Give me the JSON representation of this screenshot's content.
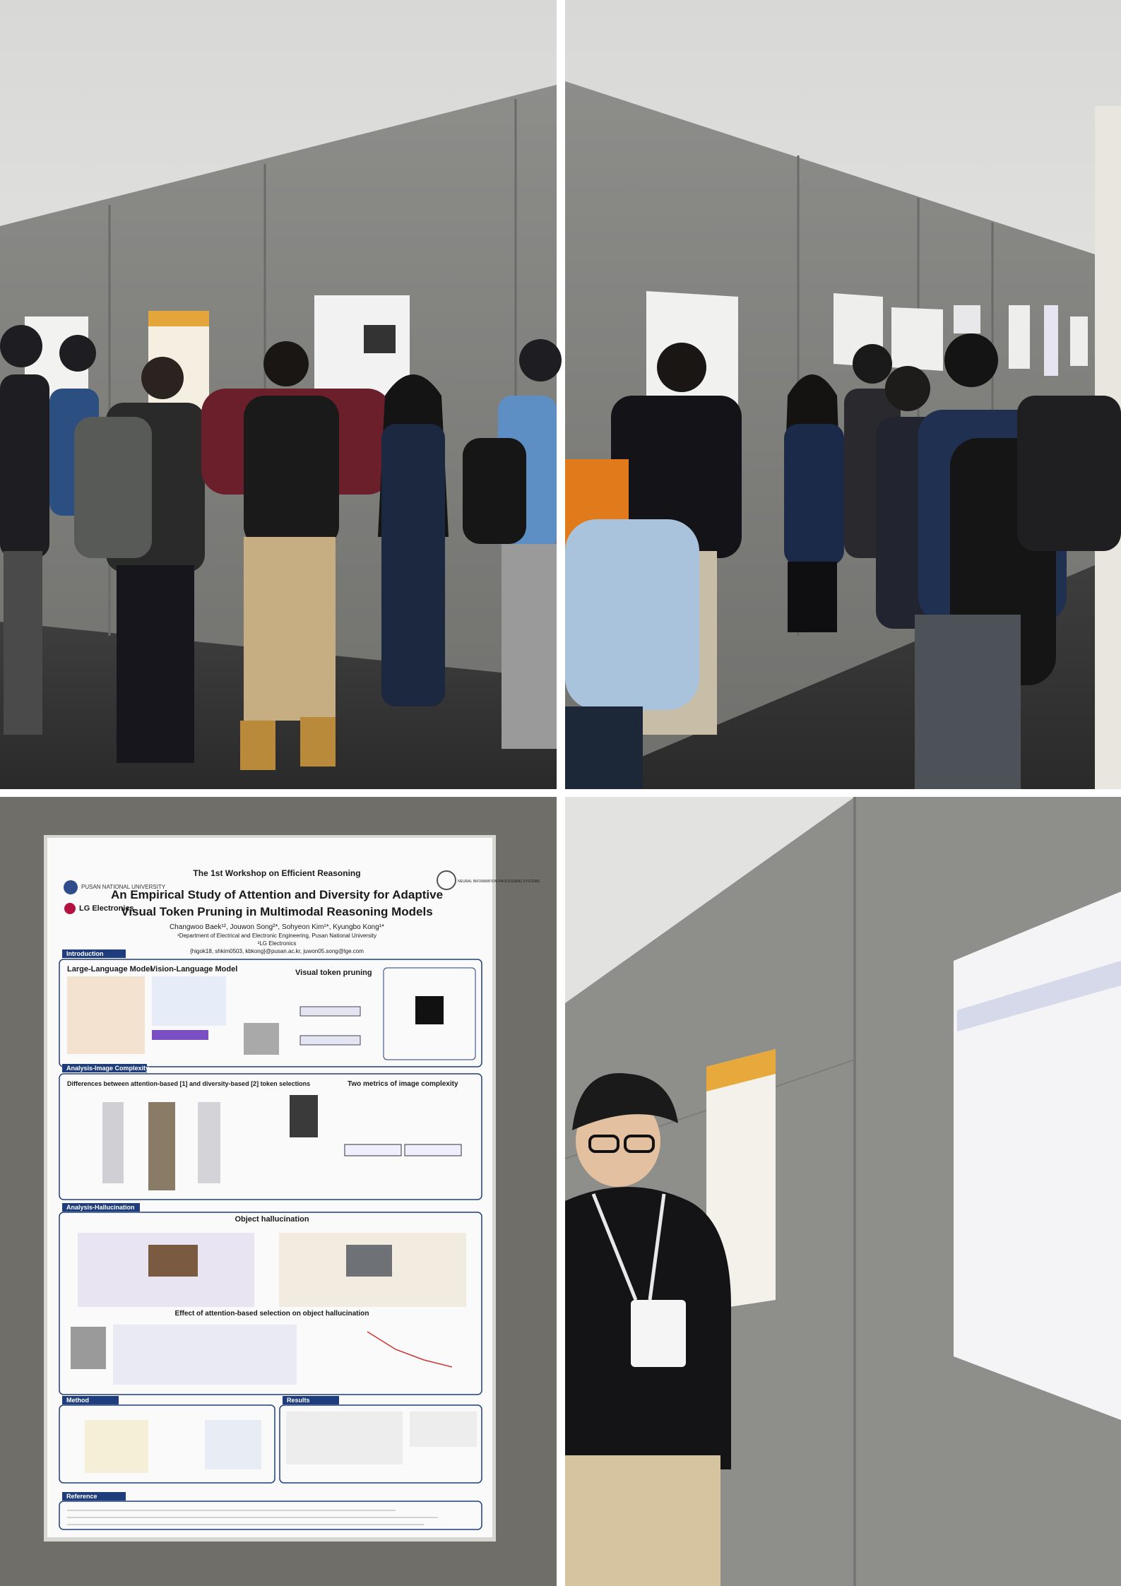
{
  "poster": {
    "workshop": "The 1st Workshop on Efficient Reasoning",
    "title_lines": [
      "An Empirical Study of Attention and Diversity for Adaptive",
      "Visual Token Pruning in Multimodal Reasoning Models"
    ],
    "authors": "Changwoo Baek¹², Jouwon Song²*, Sohyeon Kim¹*, Kyungbo Kong¹*",
    "affiliations": [
      "¹Department of Electrical and Electronic Engineering, Pusan National University",
      "²LG Electronics"
    ],
    "emails": "{higok18, shkim0503, kbkong}@pusan.ac.kr, juwon05.song@lge.com",
    "logos": [
      "PUSAN NATIONAL UNIVERSITY",
      "LG Electronics",
      "NEURAL INFORMATION PROCESSING SYSTEMS"
    ],
    "sections": [
      "Introduction",
      "Analysis-Image Complexity",
      "Analysis-Hallucination",
      "Method",
      "Results",
      "Reference"
    ],
    "headings": [
      "Large-Language Model",
      "Vision-Language Model",
      "Visual token pruning",
      "Differences between attention-based [1] and diversity-based [2] token selections",
      "Two metrics of image complexity",
      "Object hallucination",
      "Effect of attention-based selection on object hallucination"
    ]
  }
}
